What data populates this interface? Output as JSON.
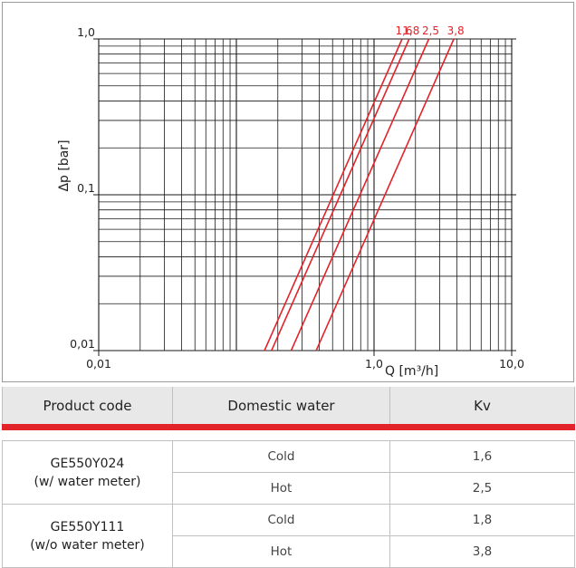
{
  "chart_data": {
    "type": "line",
    "x_scale": "log",
    "y_scale": "log",
    "xlim": [
      0.01,
      10
    ],
    "ylim": [
      0.01,
      1
    ],
    "xlabel": "Q [m³/h]",
    "ylabel": "Δp [bar]",
    "x_tick_labels": [
      {
        "value": 0.01,
        "label": "0,01"
      },
      {
        "value": 1,
        "label": "1,0"
      },
      {
        "value": 10,
        "label": "10,0"
      }
    ],
    "y_tick_labels": [
      {
        "value": 0.01,
        "label": "0,01"
      },
      {
        "value": 0.1,
        "label": "0,1"
      },
      {
        "value": 1,
        "label": "1,0"
      }
    ],
    "grid": true,
    "line_color": "#e2232a",
    "series": [
      {
        "name": "1,6",
        "kv": 1.6,
        "x": [
          0.16,
          1.6
        ],
        "y": [
          0.01,
          1.0
        ]
      },
      {
        "name": "1,8",
        "kv": 1.8,
        "x": [
          0.18,
          1.8
        ],
        "y": [
          0.01,
          1.0
        ]
      },
      {
        "name": "2,5",
        "kv": 2.5,
        "x": [
          0.25,
          2.5
        ],
        "y": [
          0.01,
          1.0
        ]
      },
      {
        "name": "3,8",
        "kv": 3.8,
        "x": [
          0.38,
          3.8
        ],
        "y": [
          0.01,
          1.0
        ]
      }
    ]
  },
  "table": {
    "headers": [
      "Product code",
      "Domestic water",
      "Kv"
    ],
    "groups": [
      {
        "code_line1": "GE550Y024",
        "code_line2": "(w/ water meter)",
        "rows": [
          {
            "water": "Cold",
            "kv": "1,6"
          },
          {
            "water": "Hot",
            "kv": "2,5"
          }
        ]
      },
      {
        "code_line1": "GE550Y111",
        "code_line2": "(w/o water meter)",
        "rows": [
          {
            "water": "Cold",
            "kv": "1,8"
          },
          {
            "water": "Hot",
            "kv": "3,8"
          }
        ]
      }
    ]
  }
}
